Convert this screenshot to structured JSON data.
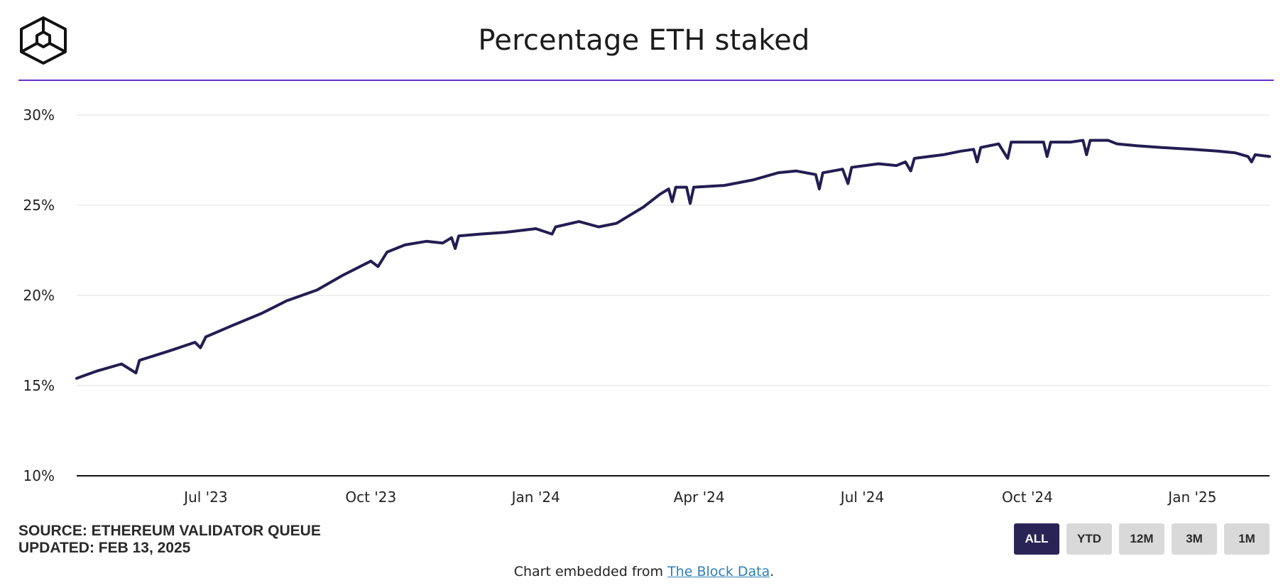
{
  "header": {
    "title": "Percentage ETH staked",
    "logo_icon": "cube-logo-icon",
    "rule_color": "#6a2fcf"
  },
  "footer": {
    "source": "SOURCE: ETHEREUM VALIDATOR QUEUE",
    "updated": "UPDATED: FEB 13, 2025",
    "embed_prefix": "Chart embedded from ",
    "embed_link": "The Block Data",
    "embed_suffix": "."
  },
  "range_buttons": [
    {
      "label": "ALL",
      "active": true
    },
    {
      "label": "YTD",
      "active": false
    },
    {
      "label": "12M",
      "active": false
    },
    {
      "label": "3M",
      "active": false
    },
    {
      "label": "1M",
      "active": false
    }
  ],
  "colors": {
    "line": "#231d52",
    "grid": "#e6e6e6",
    "button_active": "#2a2456",
    "button_inactive": "#d9d9d9"
  },
  "chart_data": {
    "type": "line",
    "title": "Percentage ETH staked",
    "xlabel": "",
    "ylabel": "",
    "x_unit": "date",
    "x_range": [
      "2023-04-20",
      "2025-02-13"
    ],
    "ylim": [
      10,
      30
    ],
    "y_ticks": [
      10,
      15,
      20,
      25,
      30
    ],
    "y_tick_labels": [
      "10%",
      "15%",
      "20%",
      "25%",
      "30%"
    ],
    "x_ticks": [
      "2023-07-01",
      "2023-10-01",
      "2024-01-01",
      "2024-04-01",
      "2024-07-01",
      "2024-10-01",
      "2025-01-01"
    ],
    "x_tick_labels": [
      "Jul '23",
      "Oct '23",
      "Jan '24",
      "Apr '24",
      "Jul '24",
      "Oct '24",
      "Jan '25"
    ],
    "grid": true,
    "series": [
      {
        "points": [
          [
            "2023-04-20",
            15.4
          ],
          [
            "2023-05-01",
            15.8
          ],
          [
            "2023-05-15",
            16.2
          ],
          [
            "2023-05-23",
            15.7
          ],
          [
            "2023-05-25",
            16.4
          ],
          [
            "2023-06-10",
            16.9
          ],
          [
            "2023-06-25",
            17.4
          ],
          [
            "2023-06-28",
            17.1
          ],
          [
            "2023-07-01",
            17.7
          ],
          [
            "2023-07-15",
            18.3
          ],
          [
            "2023-08-01",
            19.0
          ],
          [
            "2023-08-15",
            19.7
          ],
          [
            "2023-09-01",
            20.3
          ],
          [
            "2023-09-15",
            21.1
          ],
          [
            "2023-10-01",
            21.9
          ],
          [
            "2023-10-05",
            21.6
          ],
          [
            "2023-10-10",
            22.4
          ],
          [
            "2023-10-20",
            22.8
          ],
          [
            "2023-11-01",
            23.0
          ],
          [
            "2023-11-10",
            22.9
          ],
          [
            "2023-11-15",
            23.2
          ],
          [
            "2023-11-17",
            22.6
          ],
          [
            "2023-11-19",
            23.3
          ],
          [
            "2023-12-01",
            23.4
          ],
          [
            "2023-12-15",
            23.5
          ],
          [
            "2024-01-01",
            23.7
          ],
          [
            "2024-01-10",
            23.4
          ],
          [
            "2024-01-12",
            23.8
          ],
          [
            "2024-01-25",
            24.1
          ],
          [
            "2024-02-05",
            23.8
          ],
          [
            "2024-02-15",
            24.0
          ],
          [
            "2024-03-01",
            24.9
          ],
          [
            "2024-03-10",
            25.6
          ],
          [
            "2024-03-15",
            25.9
          ],
          [
            "2024-03-17",
            25.2
          ],
          [
            "2024-03-19",
            26.0
          ],
          [
            "2024-03-25",
            26.0
          ],
          [
            "2024-03-27",
            25.1
          ],
          [
            "2024-03-29",
            26.0
          ],
          [
            "2024-04-15",
            26.1
          ],
          [
            "2024-05-01",
            26.4
          ],
          [
            "2024-05-15",
            26.8
          ],
          [
            "2024-05-25",
            26.9
          ],
          [
            "2024-06-05",
            26.7
          ],
          [
            "2024-06-07",
            25.9
          ],
          [
            "2024-06-09",
            26.8
          ],
          [
            "2024-06-20",
            27.0
          ],
          [
            "2024-06-23",
            26.2
          ],
          [
            "2024-06-25",
            27.1
          ],
          [
            "2024-07-10",
            27.3
          ],
          [
            "2024-07-20",
            27.2
          ],
          [
            "2024-07-25",
            27.4
          ],
          [
            "2024-07-28",
            26.9
          ],
          [
            "2024-07-30",
            27.6
          ],
          [
            "2024-08-15",
            27.8
          ],
          [
            "2024-08-25",
            28.0
          ],
          [
            "2024-09-01",
            28.1
          ],
          [
            "2024-09-03",
            27.4
          ],
          [
            "2024-09-05",
            28.2
          ],
          [
            "2024-09-15",
            28.4
          ],
          [
            "2024-09-20",
            27.6
          ],
          [
            "2024-09-22",
            28.5
          ],
          [
            "2024-10-01",
            28.5
          ],
          [
            "2024-10-10",
            28.5
          ],
          [
            "2024-10-12",
            27.7
          ],
          [
            "2024-10-14",
            28.5
          ],
          [
            "2024-10-25",
            28.5
          ],
          [
            "2024-11-01",
            28.6
          ],
          [
            "2024-11-03",
            27.8
          ],
          [
            "2024-11-05",
            28.6
          ],
          [
            "2024-11-15",
            28.6
          ],
          [
            "2024-11-20",
            28.4
          ],
          [
            "2024-12-01",
            28.3
          ],
          [
            "2024-12-15",
            28.2
          ],
          [
            "2025-01-01",
            28.1
          ],
          [
            "2025-01-15",
            28.0
          ],
          [
            "2025-01-25",
            27.9
          ],
          [
            "2025-02-01",
            27.7
          ],
          [
            "2025-02-03",
            27.4
          ],
          [
            "2025-02-05",
            27.8
          ],
          [
            "2025-02-13",
            27.7
          ]
        ]
      }
    ]
  }
}
